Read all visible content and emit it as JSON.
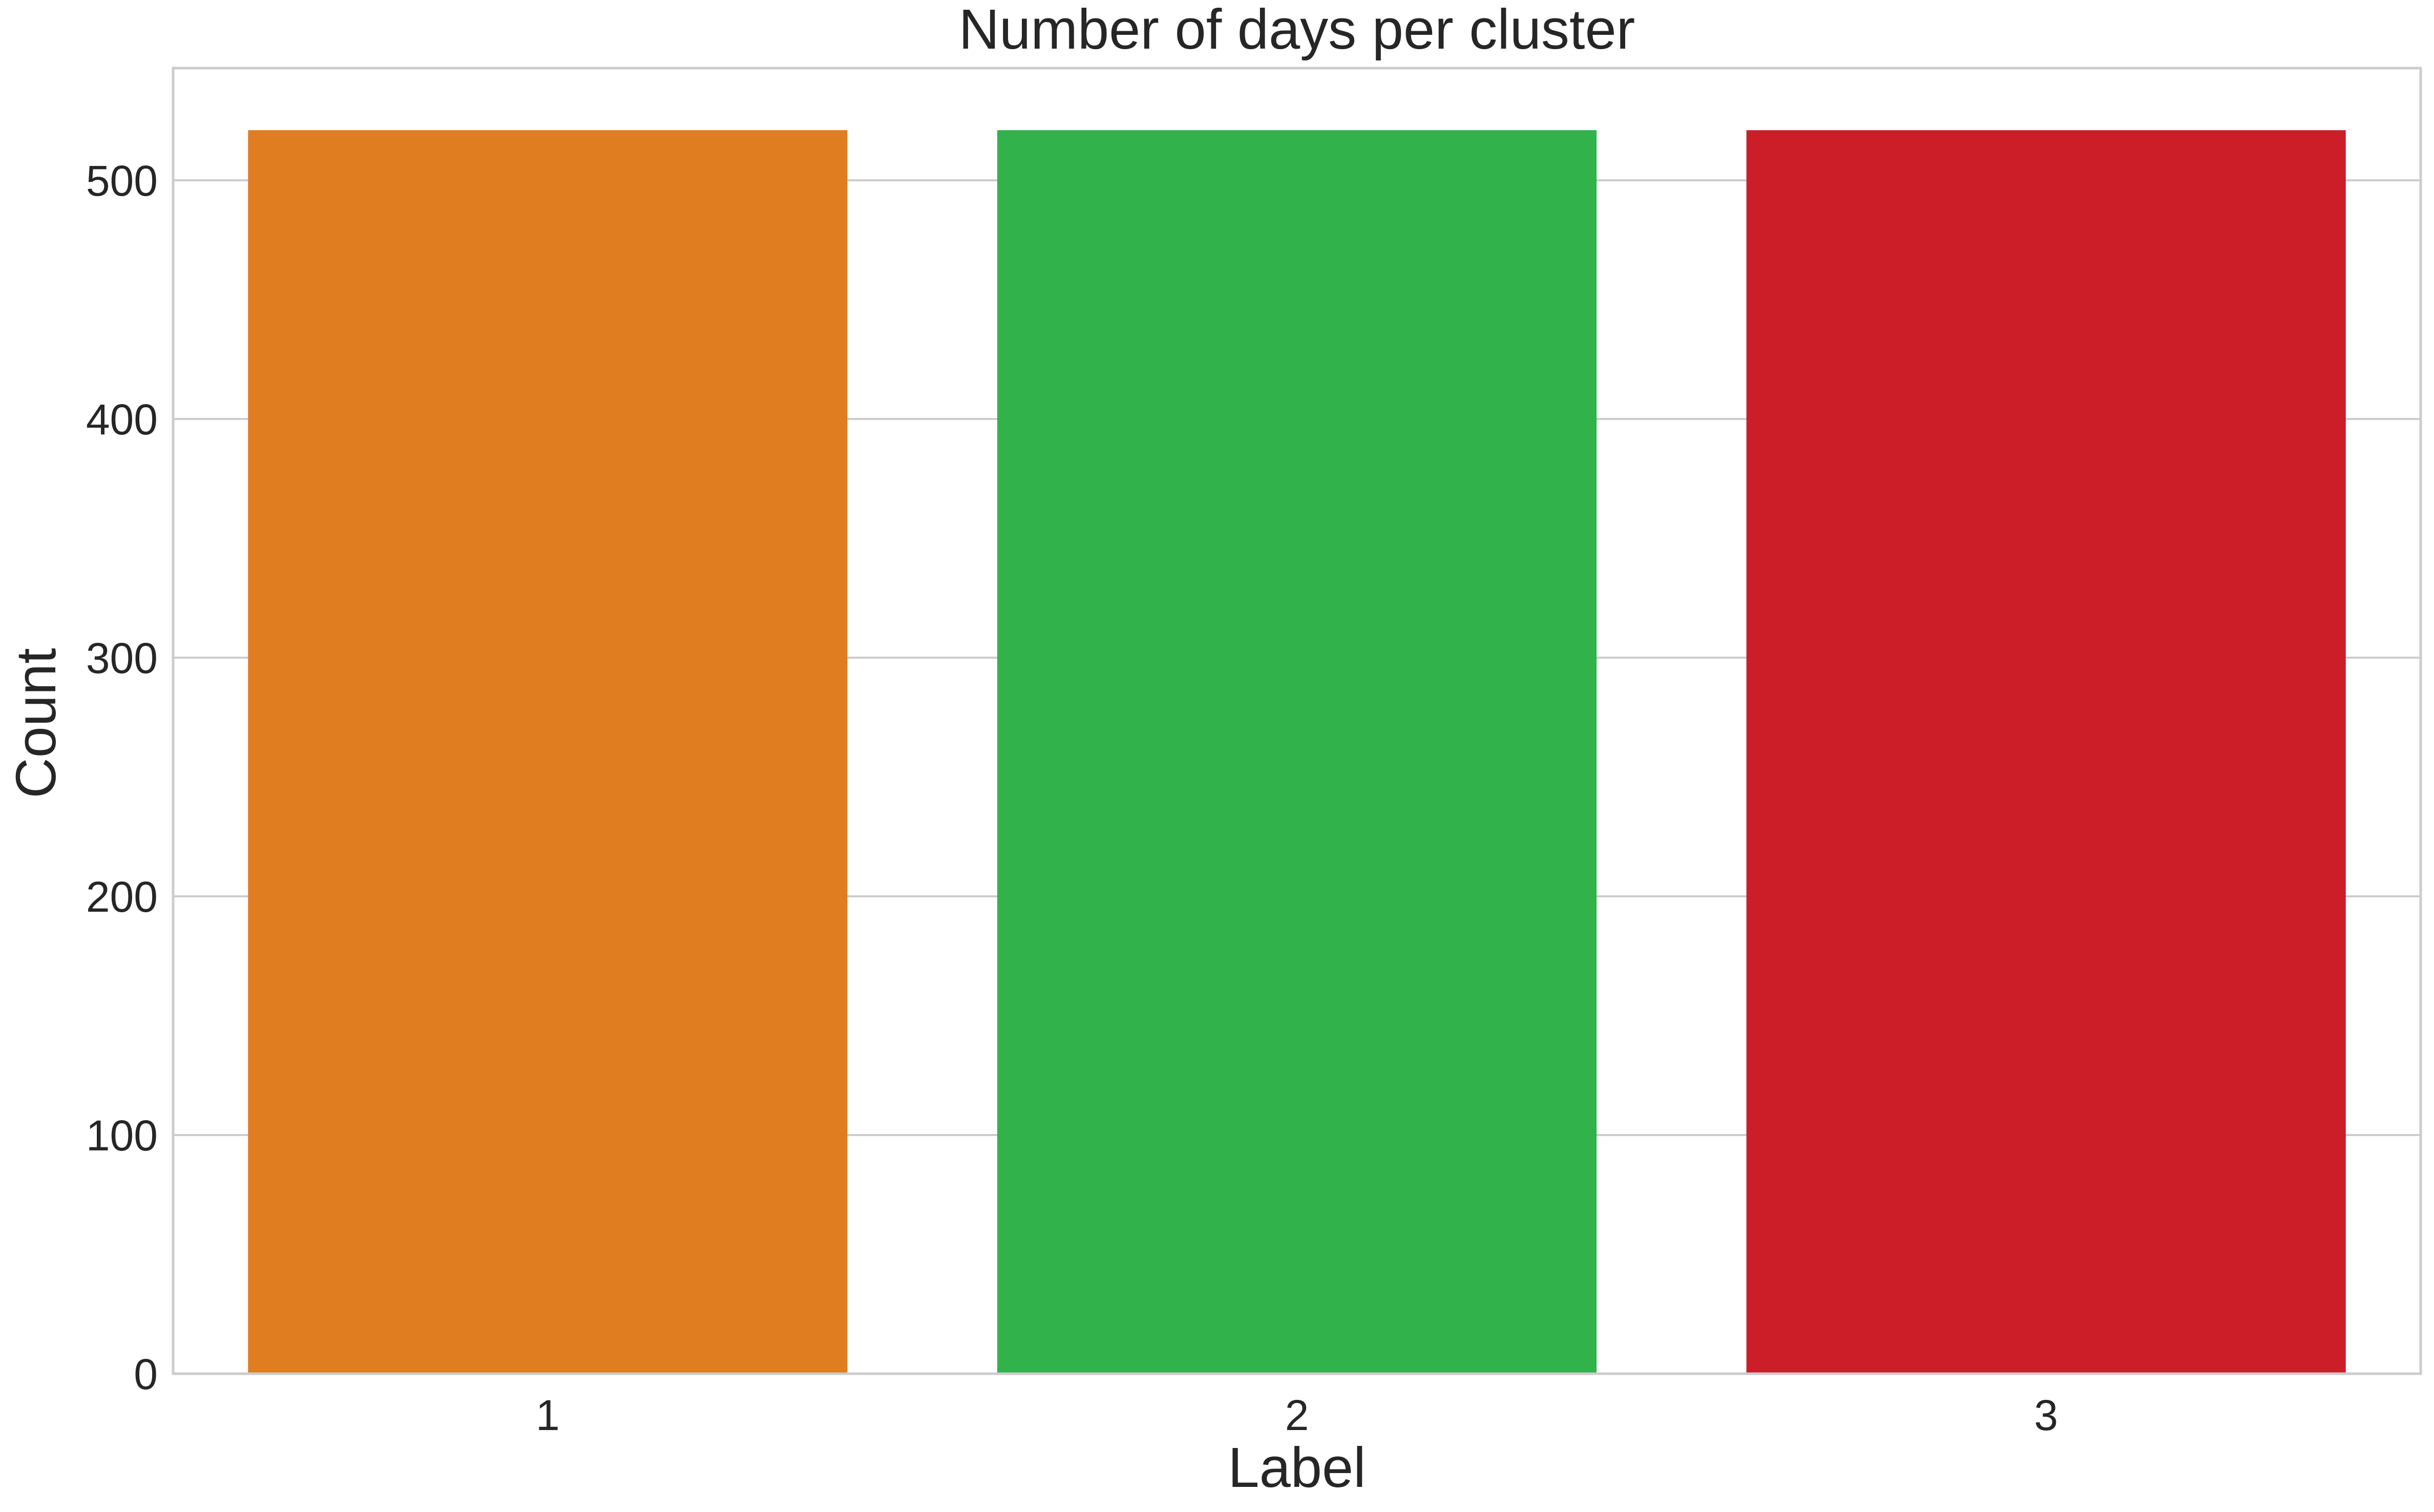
{
  "chart_data": {
    "type": "bar",
    "title": "Number of days per cluster",
    "xlabel": "Label",
    "ylabel": "Count",
    "categories": [
      "1",
      "2",
      "3"
    ],
    "values": [
      521,
      521,
      521
    ],
    "colors": [
      "#e07d20",
      "#31b24a",
      "#cb1e28"
    ],
    "ylim": [
      0,
      547
    ],
    "yticks": [
      0,
      100,
      200,
      300,
      400,
      500
    ],
    "grid": true,
    "grid_color": "#cccccc",
    "frame_color": "#cccccc",
    "text_color": "#262626"
  }
}
